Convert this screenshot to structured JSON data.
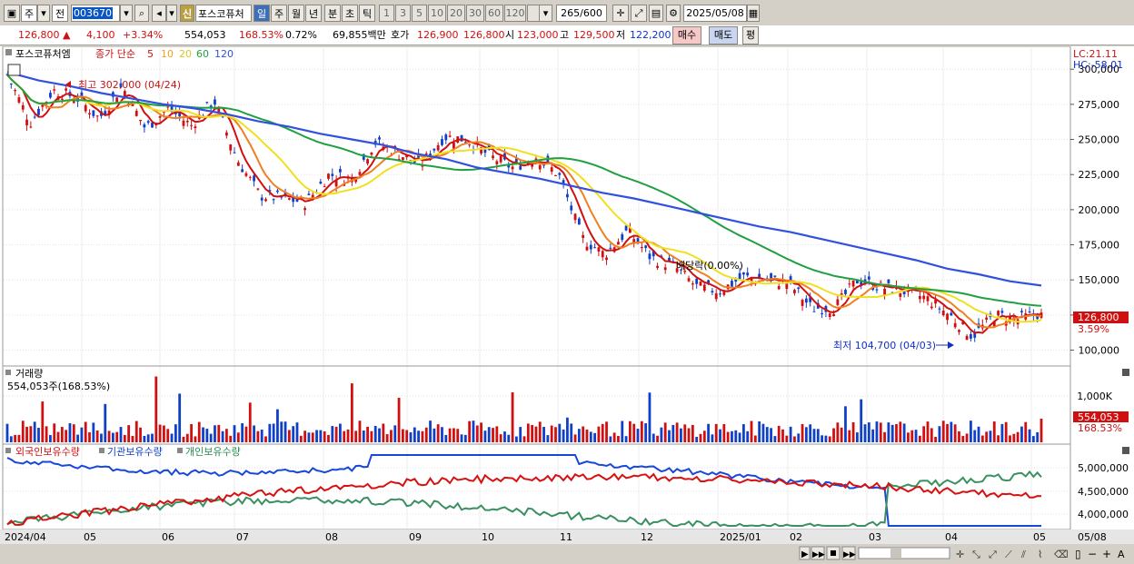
{
  "toolbar": {
    "period_label": "주",
    "prev_label": "전",
    "stock_code": "003670",
    "credit_badge": "신",
    "stock_name": "포스코퓨처",
    "day_label": "일",
    "week_label": "주",
    "month_label": "월",
    "year_label": "년",
    "minute_label": "분",
    "second_label": "초",
    "tick_label": "틱",
    "intervals": [
      "1",
      "3",
      "5",
      "10",
      "20",
      "30",
      "60",
      "120"
    ],
    "count_display": "265/600",
    "date_value": "2025/05/08"
  },
  "quote": {
    "price": "126,800",
    "change": "4,100",
    "change_pct": "+3.34%",
    "volume": "554,053",
    "volume_ratio": "168.53%",
    "turnover": "0.72%",
    "amount": "69,855백만",
    "ask_label": "호가",
    "ask": "126,900",
    "bid": "126,800",
    "open_label": "시",
    "open": "123,000",
    "high_label": "고",
    "high": "129,500",
    "low_label": "저",
    "low": "122,200",
    "buy_label": "매수",
    "sell_label": "매도",
    "balance_label": "평"
  },
  "price_panel": {
    "title": "포스코퓨처엠",
    "legend_label": "종가 단순",
    "ma_periods": [
      "5",
      "10",
      "20",
      "60",
      "120"
    ],
    "lc_label": "LC:21.11",
    "hc_label": "HC:-58.01",
    "y_ticks": [
      "300,000",
      "275,000",
      "250,000",
      "225,000",
      "200,000",
      "175,000",
      "150,000",
      "125,000",
      "100,000"
    ],
    "high_annotation": "최고 302,000 (04/24)",
    "low_annotation": "최저 104,700 (04/03)",
    "mid_annotation": "배당락(0.00%)",
    "last_price_tag": "126,800",
    "last_pct_tag": "3.59%"
  },
  "volume_panel": {
    "title": "거래량",
    "summary": "554,053주(168.53%)",
    "y_tick": "1,000K",
    "last_volume_tag": "554,053",
    "last_pct_tag": "168.53%"
  },
  "holdings_panel": {
    "legend": [
      "외국인보유수량",
      "기관보유수량",
      "개인보유수량"
    ],
    "y_ticks": [
      "5,000,000",
      "4,500,000",
      "4,000,000"
    ]
  },
  "x_axis": {
    "labels": [
      "2024/04",
      "05",
      "06",
      "07",
      "08",
      "09",
      "10",
      "11",
      "12",
      "2025/01",
      "02",
      "03",
      "04",
      "05",
      "05/08"
    ]
  },
  "colors": {
    "up": "#d01010",
    "down": "#1040c8",
    "ma5": "#d01010",
    "ma10": "#f08020",
    "ma20": "#f0e020",
    "ma60": "#20a040",
    "ma120": "#3050e0"
  },
  "chart_data": {
    "type": "line",
    "title": "포스코퓨처엠",
    "series": [
      {
        "name": "종가",
        "values": [
          296000,
          262000,
          285000,
          280000,
          265000,
          288000,
          258000,
          272000,
          260000,
          278000,
          236000,
          210000,
          208000,
          205000,
          225000,
          222000,
          248000,
          240000,
          232000,
          252000,
          250000,
          238000,
          230000,
          238000,
          225000,
          180000,
          168000,
          185000,
          166000,
          160000,
          145000,
          142000,
          152000,
          150000,
          148000,
          130000,
          130000,
          150000,
          145000,
          142000,
          137000,
          125000,
          110000,
          125000,
          122000,
          126800
        ]
      },
      {
        "name": "120",
        "values": [
          298000,
          292000,
          288000,
          283000,
          279000,
          275000,
          272000,
          268000,
          263000,
          259000,
          254000,
          250000,
          246000,
          240000,
          236000,
          230000,
          226000,
          222000,
          217000,
          212000,
          208000,
          203000,
          198000,
          193000,
          188000,
          184000,
          179000,
          174000,
          169000,
          164000,
          158000,
          154000,
          149000,
          146000
        ]
      }
    ],
    "ylim": [
      90000,
      315000
    ],
    "high": {
      "value": 302000,
      "date": "04/24"
    },
    "low": {
      "value": 104700,
      "date": "04/03"
    }
  }
}
